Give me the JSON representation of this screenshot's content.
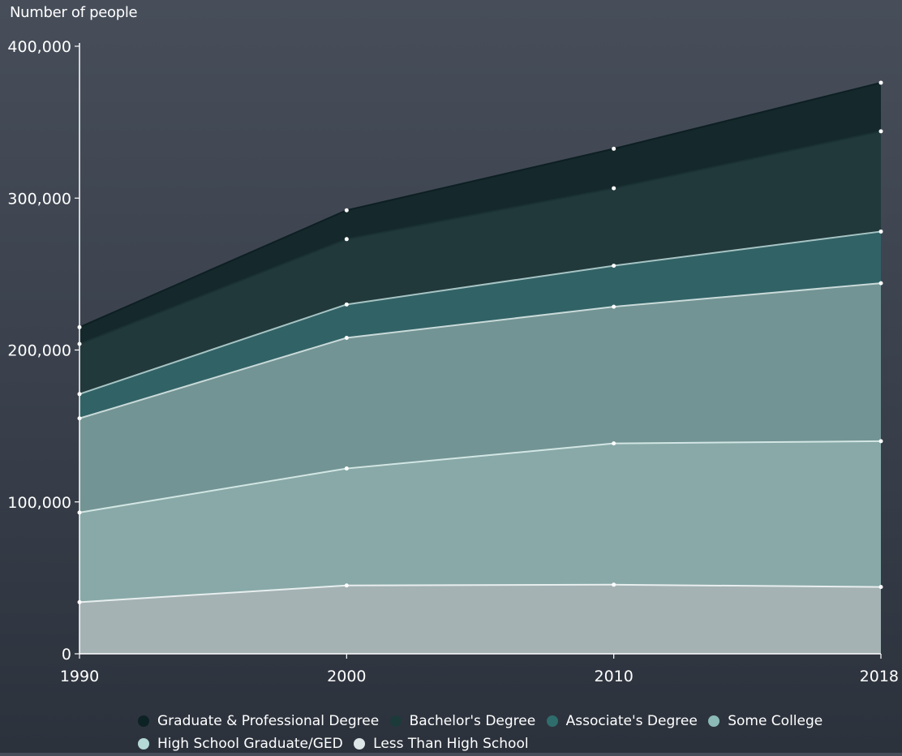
{
  "chart_data": {
    "type": "area",
    "stacked": true,
    "ylabel": "Number of people",
    "xlabel": "",
    "x": [
      "1990",
      "2000",
      "2010",
      "2018"
    ],
    "ylim": [
      0,
      400000
    ],
    "yticks": [
      0,
      100000,
      200000,
      300000,
      400000
    ],
    "ytick_labels": [
      "0",
      "100,000",
      "200,000",
      "300,000",
      "400,000"
    ],
    "grid": false,
    "legend_position": "bottom",
    "series": [
      {
        "name": "Less Than High School",
        "color": "#a4b2b4",
        "line": "#e8eeee",
        "legend_color": "#dde6e6",
        "values": [
          34000,
          45000,
          45500,
          44000
        ]
      },
      {
        "name": "High School Graduate/GED",
        "color": "#88a9a8",
        "line": "#d2e6e4",
        "legend_color": "#b4d9d6",
        "values": [
          59000,
          77000,
          93000,
          96000
        ]
      },
      {
        "name": "Some College",
        "color": "#739494",
        "line": "#c9dad9",
        "legend_color": "#8cbab6",
        "values": [
          62000,
          86000,
          90000,
          104000
        ]
      },
      {
        "name": "Associate's Degree",
        "color": "#316266",
        "line": "#a7c4c4",
        "legend_color": "#2f6d6d",
        "values": [
          16000,
          22000,
          27000,
          34000
        ]
      },
      {
        "name": "Bachelor's Degree",
        "color": "#22393b",
        "line": "#1a3234",
        "legend_color": "#1d3a3a",
        "values": [
          33000,
          43000,
          51000,
          66000
        ]
      },
      {
        "name": "Graduate & Professional Degree",
        "color": "#15282b",
        "line": "#0d1f22",
        "legend_color": "#0d2224",
        "values": [
          11000,
          19000,
          26000,
          32000
        ]
      }
    ]
  }
}
